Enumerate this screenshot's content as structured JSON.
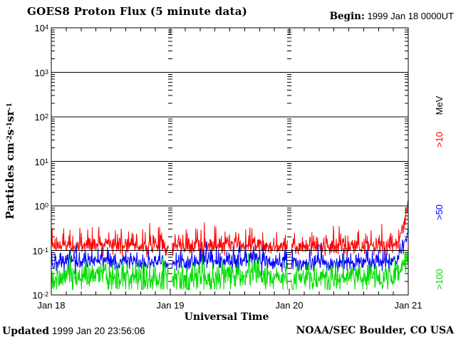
{
  "header": {
    "title": "GOES8 Proton Flux (5 minute data)",
    "begin_label": "Begin:",
    "begin_value": "1999 Jan 18 0000UT"
  },
  "footer": {
    "updated_label": "Updated",
    "updated_value": "1999 Jan 20 23:56:06",
    "credit": "NOAA/SEC Boulder, CO USA"
  },
  "chart_data": {
    "type": "line",
    "title": "GOES8 Proton Flux (5 minute data)",
    "xlabel": "Universal Time",
    "ylabel_parts": [
      {
        "t": "Particles cm"
      },
      {
        "sup": "-2"
      },
      {
        "t": "s"
      },
      {
        "sup": "-1"
      },
      {
        "t": "sr"
      },
      {
        "sup": "-1"
      }
    ],
    "y_scale": "log10",
    "y_range_log10": [
      -2,
      4
    ],
    "y_ticks": [
      {
        "mantissa": "10",
        "exp": "4",
        "value": 10000
      },
      {
        "mantissa": "10",
        "exp": "3",
        "value": 1000
      },
      {
        "mantissa": "10",
        "exp": "2",
        "value": 100
      },
      {
        "mantissa": "10",
        "exp": "1",
        "value": 10
      },
      {
        "mantissa": "10",
        "exp": "0",
        "value": 1
      },
      {
        "mantissa": "10",
        "exp": "-1",
        "value": 0.1
      },
      {
        "mantissa": "10",
        "exp": "-2",
        "value": 0.01
      }
    ],
    "x_range_hours": [
      0,
      72
    ],
    "x_ticks": [
      {
        "label": "Jan 18",
        "hour": 0
      },
      {
        "label": "Jan 19",
        "hour": 24
      },
      {
        "label": "Jan 20",
        "hour": 48
      },
      {
        "label": "Jan 21",
        "hour": 72
      }
    ],
    "x_minor_ticks_per_day": 8,
    "day_gridlines_hours": [
      24,
      48
    ],
    "data_gap_hours": [
      24,
      48
    ],
    "gap_halfwidth_hours": 0.35,
    "decade_lines_exponents": [
      3,
      2,
      1,
      0,
      -1
    ],
    "legend_unit": {
      "text": "MeV",
      "color": "#000000"
    },
    "legend": [
      {
        "text": ">10",
        "color": "#ff0000"
      },
      {
        "text": ">50",
        "color": "#0000ff"
      },
      {
        "text": ">100",
        "color": "#00dd00"
      }
    ],
    "series": [
      {
        "name": ">10 MeV protons",
        "legend_label": ">10",
        "color": "#ff0000",
        "cadence_minutes": 5,
        "seed": 1101,
        "noise": {
          "sigma_log10": 0.085,
          "spike_up_prob": 0.12,
          "spike_up_max": 0.38,
          "spike_down_prob": 0.06,
          "spike_down_max": 0.18,
          "clamp_min_log10": -1.18,
          "clamp_max_log10": 0.12
        },
        "hourly_log10_flux": [
          -0.95,
          -0.92,
          -0.9,
          -0.88,
          -0.91,
          -0.93,
          -0.9,
          -0.87,
          -0.89,
          -0.91,
          -0.88,
          -0.86,
          -0.88,
          -0.9,
          -0.92,
          -0.89,
          -0.87,
          -0.89,
          -0.91,
          -0.93,
          -0.9,
          -0.88,
          -0.9,
          -0.92,
          -0.94,
          -0.92,
          -0.9,
          -0.92,
          -0.94,
          -0.91,
          -0.89,
          -0.87,
          -0.89,
          -0.91,
          -0.89,
          -0.87,
          -0.85,
          -0.87,
          -0.89,
          -0.87,
          -0.85,
          -0.83,
          -0.86,
          -0.89,
          -0.91,
          -0.93,
          -0.91,
          -0.93,
          -0.95,
          -0.93,
          -0.95,
          -0.93,
          -0.91,
          -0.93,
          -0.91,
          -0.89,
          -0.91,
          -0.93,
          -0.91,
          -0.89,
          -0.91,
          -0.93,
          -0.91,
          -0.93,
          -0.91,
          -0.89,
          -0.91,
          -0.93,
          -0.91,
          -0.88,
          -0.85,
          -0.45,
          0.02
        ]
      },
      {
        "name": ">50 MeV protons",
        "legend_label": ">50",
        "color": "#0000ff",
        "cadence_minutes": 5,
        "seed": 2202,
        "noise": {
          "sigma_log10": 0.085,
          "spike_up_prob": 0.12,
          "spike_up_max": 0.3,
          "spike_down_prob": 0.08,
          "spike_down_max": 0.18,
          "clamp_min_log10": -1.58,
          "clamp_max_log10": -0.35
        },
        "hourly_log10_flux": [
          -1.3,
          -1.27,
          -1.25,
          -1.23,
          -1.26,
          -1.28,
          -1.25,
          -1.22,
          -1.24,
          -1.26,
          -1.23,
          -1.21,
          -1.23,
          -1.25,
          -1.27,
          -1.24,
          -1.22,
          -1.24,
          -1.26,
          -1.28,
          -1.25,
          -1.23,
          -1.25,
          -1.27,
          -1.29,
          -1.27,
          -1.25,
          -1.27,
          -1.29,
          -1.26,
          -1.24,
          -1.22,
          -1.24,
          -1.26,
          -1.24,
          -1.22,
          -1.2,
          -1.22,
          -1.24,
          -1.22,
          -1.2,
          -1.18,
          -1.21,
          -1.24,
          -1.26,
          -1.28,
          -1.26,
          -1.28,
          -1.3,
          -1.28,
          -1.3,
          -1.28,
          -1.26,
          -1.28,
          -1.26,
          -1.24,
          -1.26,
          -1.28,
          -1.26,
          -1.24,
          -1.26,
          -1.28,
          -1.26,
          -1.28,
          -1.26,
          -1.24,
          -1.26,
          -1.28,
          -1.26,
          -1.23,
          -1.15,
          -0.88,
          -0.58
        ]
      },
      {
        "name": ">100 MeV protons",
        "legend_label": ">100",
        "color": "#00dd00",
        "cadence_minutes": 5,
        "seed": 3303,
        "noise": {
          "sigma_log10": 0.14,
          "spike_up_prob": 0.12,
          "spike_up_max": 0.28,
          "spike_down_prob": 0.18,
          "spike_down_max": 0.28,
          "clamp_min_log10": -1.88,
          "clamp_max_log10": -1.02
        },
        "hourly_log10_flux": [
          -1.64,
          -1.61,
          -1.59,
          -1.57,
          -1.6,
          -1.62,
          -1.59,
          -1.56,
          -1.58,
          -1.6,
          -1.57,
          -1.55,
          -1.57,
          -1.59,
          -1.61,
          -1.58,
          -1.56,
          -1.58,
          -1.6,
          -1.62,
          -1.59,
          -1.57,
          -1.59,
          -1.61,
          -1.63,
          -1.61,
          -1.59,
          -1.61,
          -1.63,
          -1.6,
          -1.58,
          -1.56,
          -1.58,
          -1.6,
          -1.58,
          -1.56,
          -1.54,
          -1.56,
          -1.58,
          -1.56,
          -1.54,
          -1.52,
          -1.55,
          -1.58,
          -1.6,
          -1.62,
          -1.6,
          -1.62,
          -1.64,
          -1.62,
          -1.64,
          -1.62,
          -1.6,
          -1.62,
          -1.6,
          -1.58,
          -1.6,
          -1.62,
          -1.6,
          -1.58,
          -1.6,
          -1.62,
          -1.6,
          -1.62,
          -1.6,
          -1.58,
          -1.6,
          -1.62,
          -1.6,
          -1.57,
          -1.5,
          -1.32,
          -1.12
        ]
      }
    ]
  }
}
